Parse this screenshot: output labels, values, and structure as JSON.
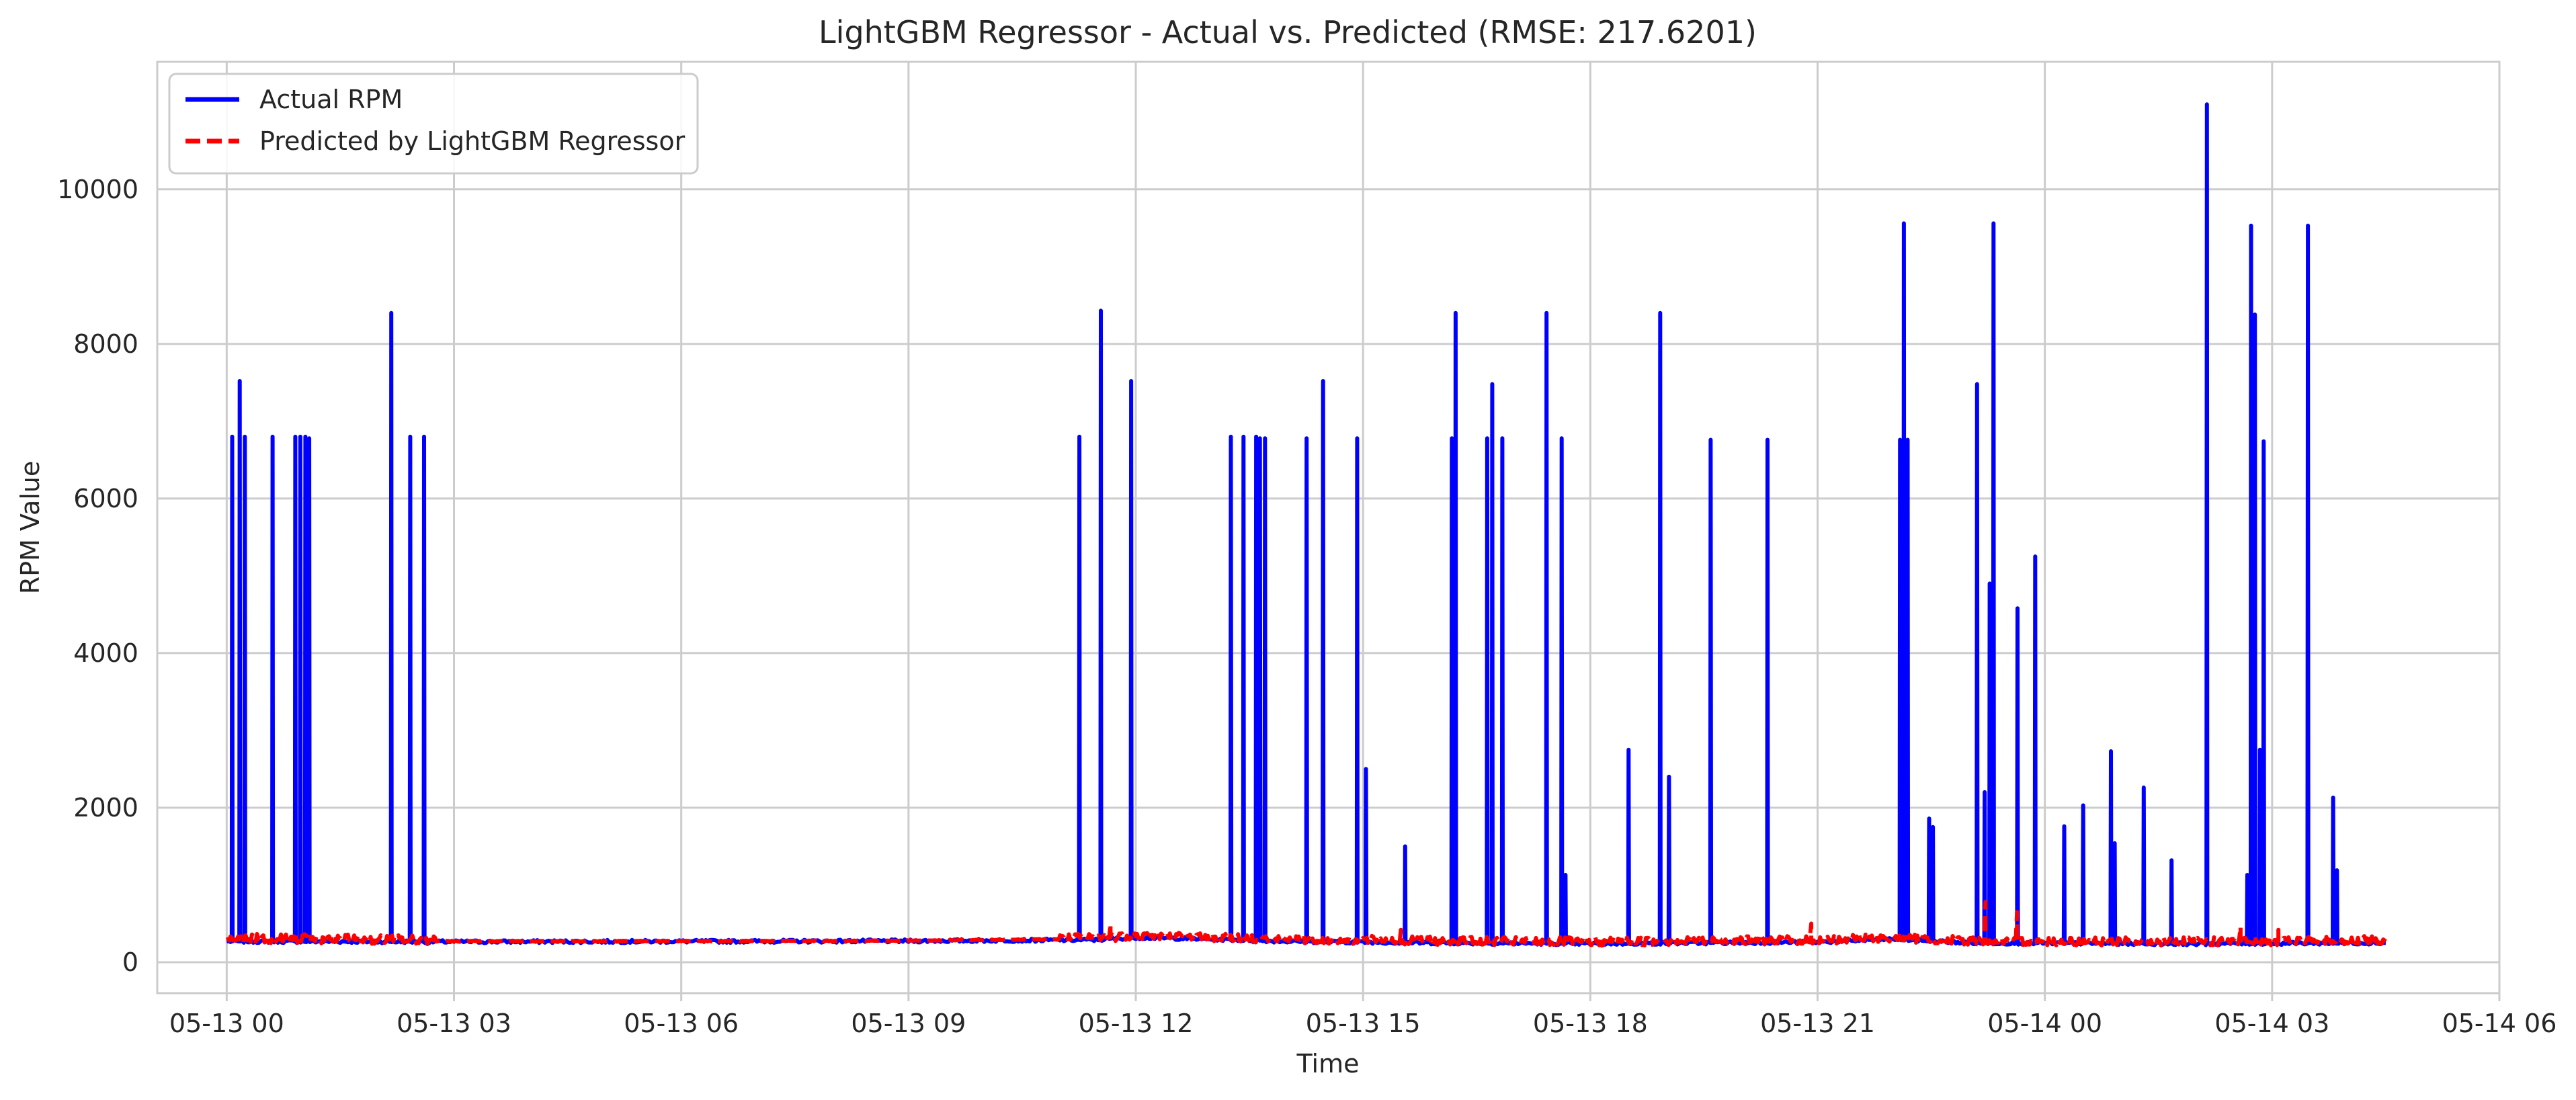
{
  "chart_data": {
    "type": "line",
    "title": "LightGBM Regressor - Actual vs. Predicted (RMSE: 217.6201)",
    "xlabel": "Time",
    "ylabel": "RPM Value",
    "xlim": [
      "2024-05-12T23:05",
      "2024-05-14T06:00"
    ],
    "ylim": [
      -400,
      11650
    ],
    "x_tick_labels": [
      "05-13 00",
      "05-13 03",
      "05-13 06",
      "05-13 09",
      "05-13 12",
      "05-13 15",
      "05-13 18",
      "05-13 21",
      "05-14 00",
      "05-14 03",
      "05-14 06"
    ],
    "y_tick_labels": [
      "0",
      "2000",
      "4000",
      "6000",
      "8000",
      "10000"
    ],
    "y_ticks": [
      0,
      2000,
      4000,
      6000,
      8000,
      10000
    ],
    "grid": true,
    "legend_position": "top-left",
    "series": [
      {
        "name": "Actual RPM",
        "color": "#0000ff",
        "style": "solid",
        "baseline": [
          {
            "t": "2024-05-13T00:00",
            "v": 270
          },
          {
            "t": "2024-05-13T03:00",
            "v": 265
          },
          {
            "t": "2024-05-13T06:00",
            "v": 270
          },
          {
            "t": "2024-05-13T09:00",
            "v": 275
          },
          {
            "t": "2024-05-13T11:30",
            "v": 290
          },
          {
            "t": "2024-05-13T12:00",
            "v": 320
          },
          {
            "t": "2024-05-13T13:00",
            "v": 300
          },
          {
            "t": "2024-05-13T14:00",
            "v": 270
          },
          {
            "t": "2024-05-13T16:00",
            "v": 250
          },
          {
            "t": "2024-05-13T18:00",
            "v": 240
          },
          {
            "t": "2024-05-13T21:00",
            "v": 260
          },
          {
            "t": "2024-05-13T22:00",
            "v": 300
          },
          {
            "t": "2024-05-13T23:00",
            "v": 250
          },
          {
            "t": "2024-05-14T02:00",
            "v": 240
          },
          {
            "t": "2024-05-14T04:30",
            "v": 250
          }
        ],
        "spikes": [
          {
            "t": "2024-05-13T00:04",
            "v": 6800
          },
          {
            "t": "2024-05-13T00:10",
            "v": 7520
          },
          {
            "t": "2024-05-13T00:14",
            "v": 6800
          },
          {
            "t": "2024-05-13T00:36",
            "v": 6800
          },
          {
            "t": "2024-05-13T00:54",
            "v": 6800
          },
          {
            "t": "2024-05-13T00:58",
            "v": 6800
          },
          {
            "t": "2024-05-13T01:02",
            "v": 6800
          },
          {
            "t": "2024-05-13T01:05",
            "v": 6780
          },
          {
            "t": "2024-05-13T02:10",
            "v": 8400
          },
          {
            "t": "2024-05-13T02:25",
            "v": 6800
          },
          {
            "t": "2024-05-13T02:36",
            "v": 6800
          },
          {
            "t": "2024-05-13T11:15",
            "v": 6800
          },
          {
            "t": "2024-05-13T11:32",
            "v": 8430
          },
          {
            "t": "2024-05-13T11:56",
            "v": 7520
          },
          {
            "t": "2024-05-13T13:15",
            "v": 6800
          },
          {
            "t": "2024-05-13T13:25",
            "v": 6800
          },
          {
            "t": "2024-05-13T13:35",
            "v": 6800
          },
          {
            "t": "2024-05-13T13:38",
            "v": 6780
          },
          {
            "t": "2024-05-13T13:42",
            "v": 6780
          },
          {
            "t": "2024-05-13T14:15",
            "v": 6780
          },
          {
            "t": "2024-05-13T14:28",
            "v": 7520
          },
          {
            "t": "2024-05-13T14:55",
            "v": 6780
          },
          {
            "t": "2024-05-13T15:02",
            "v": 2500
          },
          {
            "t": "2024-05-13T15:33",
            "v": 1500
          },
          {
            "t": "2024-05-13T16:10",
            "v": 6780
          },
          {
            "t": "2024-05-13T16:13",
            "v": 8400
          },
          {
            "t": "2024-05-13T16:38",
            "v": 6780
          },
          {
            "t": "2024-05-13T16:42",
            "v": 7480
          },
          {
            "t": "2024-05-13T16:50",
            "v": 6780
          },
          {
            "t": "2024-05-13T17:25",
            "v": 8400
          },
          {
            "t": "2024-05-13T17:37",
            "v": 6780
          },
          {
            "t": "2024-05-13T17:40",
            "v": 1130
          },
          {
            "t": "2024-05-13T18:30",
            "v": 2750
          },
          {
            "t": "2024-05-13T18:55",
            "v": 8400
          },
          {
            "t": "2024-05-13T19:02",
            "v": 2400
          },
          {
            "t": "2024-05-13T19:35",
            "v": 6760
          },
          {
            "t": "2024-05-13T20:20",
            "v": 6760
          },
          {
            "t": "2024-05-13T22:05",
            "v": 6760
          },
          {
            "t": "2024-05-13T22:08",
            "v": 9560
          },
          {
            "t": "2024-05-13T22:11",
            "v": 6760
          },
          {
            "t": "2024-05-13T22:28",
            "v": 1860
          },
          {
            "t": "2024-05-13T22:31",
            "v": 1750
          },
          {
            "t": "2024-05-13T23:06",
            "v": 7480
          },
          {
            "t": "2024-05-13T23:12",
            "v": 2200
          },
          {
            "t": "2024-05-13T23:16",
            "v": 4900
          },
          {
            "t": "2024-05-13T23:19",
            "v": 9560
          },
          {
            "t": "2024-05-13T23:38",
            "v": 4580
          },
          {
            "t": "2024-05-13T23:52",
            "v": 5250
          },
          {
            "t": "2024-05-14T00:15",
            "v": 1760
          },
          {
            "t": "2024-05-14T00:30",
            "v": 2030
          },
          {
            "t": "2024-05-14T00:52",
            "v": 2730
          },
          {
            "t": "2024-05-14T00:55",
            "v": 1540
          },
          {
            "t": "2024-05-14T01:18",
            "v": 2260
          },
          {
            "t": "2024-05-14T01:40",
            "v": 1320
          },
          {
            "t": "2024-05-14T02:08",
            "v": 11100
          },
          {
            "t": "2024-05-14T02:40",
            "v": 1130
          },
          {
            "t": "2024-05-14T02:43",
            "v": 9530
          },
          {
            "t": "2024-05-14T02:46",
            "v": 8380
          },
          {
            "t": "2024-05-14T02:50",
            "v": 2750
          },
          {
            "t": "2024-05-14T02:53",
            "v": 6740
          },
          {
            "t": "2024-05-14T03:28",
            "v": 9530
          },
          {
            "t": "2024-05-14T03:48",
            "v": 2130
          },
          {
            "t": "2024-05-14T03:51",
            "v": 1190
          }
        ]
      },
      {
        "name": "Predicted by LightGBM Regressor",
        "color": "#ff0000",
        "style": "dashed",
        "baseline": [
          {
            "t": "2024-05-13T00:00",
            "v": 290
          },
          {
            "t": "2024-05-13T03:00",
            "v": 270
          },
          {
            "t": "2024-05-13T06:00",
            "v": 272
          },
          {
            "t": "2024-05-13T09:00",
            "v": 278
          },
          {
            "t": "2024-05-13T11:30",
            "v": 300
          },
          {
            "t": "2024-05-13T12:00",
            "v": 330
          },
          {
            "t": "2024-05-13T13:00",
            "v": 310
          },
          {
            "t": "2024-05-13T14:00",
            "v": 280
          },
          {
            "t": "2024-05-13T16:00",
            "v": 260
          },
          {
            "t": "2024-05-13T18:00",
            "v": 250
          },
          {
            "t": "2024-05-13T21:00",
            "v": 270
          },
          {
            "t": "2024-05-13T22:00",
            "v": 300
          },
          {
            "t": "2024-05-13T23:00",
            "v": 260
          },
          {
            "t": "2024-05-14T02:00",
            "v": 250
          },
          {
            "t": "2024-05-14T04:30",
            "v": 270
          }
        ],
        "noisy_ranges": [
          {
            "start": "2024-05-13T00:00",
            "end": "2024-05-13T02:45",
            "amp": 120
          },
          {
            "start": "2024-05-13T11:00",
            "end": "2024-05-13T16:00",
            "amp": 110
          },
          {
            "start": "2024-05-13T16:00",
            "end": "2024-05-14T04:30",
            "amp": 110
          }
        ],
        "spikes": [
          {
            "t": "2024-05-13T11:40",
            "v": 500
          },
          {
            "t": "2024-05-13T15:30",
            "v": 420
          },
          {
            "t": "2024-05-13T20:55",
            "v": 500
          },
          {
            "t": "2024-05-13T23:13",
            "v": 780
          },
          {
            "t": "2024-05-13T23:38",
            "v": 650
          },
          {
            "t": "2024-05-14T02:35",
            "v": 460
          },
          {
            "t": "2024-05-14T03:05",
            "v": 420
          }
        ]
      }
    ]
  }
}
